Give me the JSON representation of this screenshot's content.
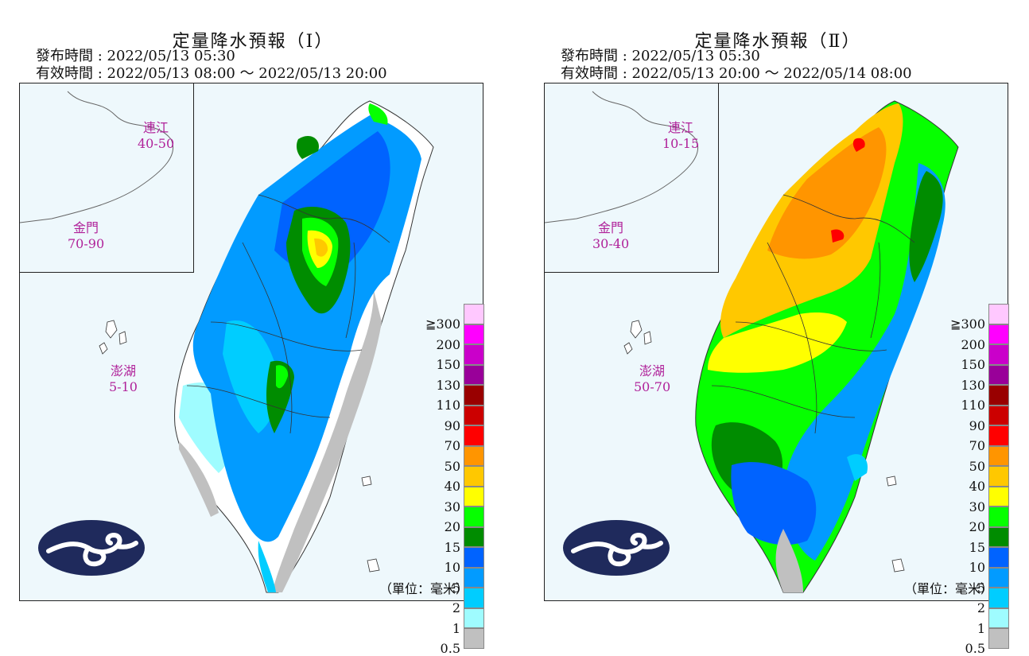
{
  "panels": [
    {
      "title": "定量降水預報（Ⅰ）",
      "issue_time": "發布時間 : 2022/05/13 05:30",
      "valid_time": "有效時間 : 2022/05/13 08:00 ～ 2022/05/13 20:00",
      "regions": [
        {
          "name": "連江",
          "range": "40-50"
        },
        {
          "name": "金門",
          "range": "70-90"
        },
        {
          "name": "澎湖",
          "range": "5-10"
        }
      ]
    },
    {
      "title": "定量降水預報（Ⅱ）",
      "issue_time": "發布時間 : 2022/05/13 05:30",
      "valid_time": "有效時間 : 2022/05/13 20:00 ～ 2022/05/14 08:00",
      "regions": [
        {
          "name": "連江",
          "range": "10-15"
        },
        {
          "name": "金門",
          "range": "30-40"
        },
        {
          "name": "澎湖",
          "range": "50-70"
        }
      ]
    }
  ],
  "legend": {
    "ticks": [
      "0.5",
      "1",
      "2",
      "5",
      "10",
      "15",
      "20",
      "30",
      "40",
      "50",
      "70",
      "90",
      "110",
      "130",
      "150",
      "200",
      "≧300"
    ],
    "colors": [
      "#c0c0c0",
      "#9ffcff",
      "#00cdff",
      "#029bff",
      "#0063ff",
      "#008c00",
      "#06ff00",
      "#ffff00",
      "#ffc800",
      "#ff9500",
      "#ff0000",
      "#cc0000",
      "#990000",
      "#990099",
      "#ca00ca",
      "#ff00ff",
      "#ffc8ff"
    ]
  },
  "unit": "（單位：毫米）"
}
